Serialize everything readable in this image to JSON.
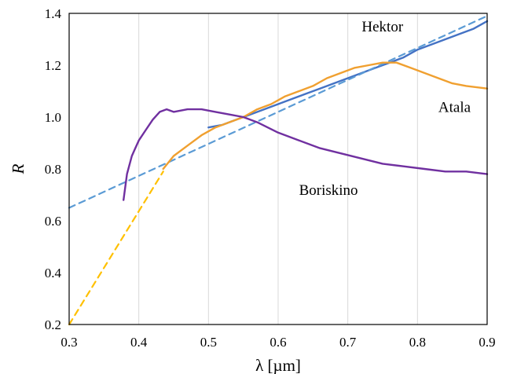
{
  "chart_data": {
    "type": "line",
    "xlabel": "λ [µm]",
    "ylabel": "R",
    "xlim": [
      0.3,
      0.9
    ],
    "ylim": [
      0.2,
      1.4
    ],
    "x_ticks": [
      0.3,
      0.4,
      0.5,
      0.6,
      0.7,
      0.8,
      0.9
    ],
    "x_tick_labels": [
      "0.3",
      "0.4",
      "0.5",
      "0.6",
      "0.7",
      "0.8",
      "0.9"
    ],
    "y_ticks": [
      0.2,
      0.4,
      0.6,
      0.8,
      1.0,
      1.2,
      1.4
    ],
    "y_tick_labels": [
      "0.2",
      "0.4",
      "0.6",
      "0.8",
      "1.0",
      "1.2",
      "1.4"
    ],
    "grid": "vertical",
    "legend": "none",
    "series": [
      {
        "name": "Hektor",
        "color": "#4472c4",
        "style": "solid",
        "label_at": [
          0.72,
          1.33
        ],
        "x": [
          0.5,
          0.52,
          0.54,
          0.56,
          0.58,
          0.6,
          0.62,
          0.64,
          0.66,
          0.68,
          0.7,
          0.72,
          0.74,
          0.76,
          0.78,
          0.8,
          0.82,
          0.84,
          0.86,
          0.88,
          0.9
        ],
        "y": [
          0.96,
          0.97,
          0.99,
          1.01,
          1.03,
          1.05,
          1.07,
          1.09,
          1.11,
          1.13,
          1.15,
          1.17,
          1.19,
          1.21,
          1.23,
          1.26,
          1.28,
          1.3,
          1.32,
          1.34,
          1.37
        ]
      },
      {
        "name": "",
        "color": "#5b9bd5",
        "style": "dashed",
        "x": [
          0.3,
          0.9
        ],
        "y": [
          0.65,
          1.39
        ]
      },
      {
        "name": "Atala",
        "color": "#f0a030",
        "style": "solid",
        "label_at": [
          0.83,
          1.02
        ],
        "x": [
          0.435,
          0.45,
          0.47,
          0.49,
          0.51,
          0.53,
          0.55,
          0.57,
          0.59,
          0.61,
          0.63,
          0.65,
          0.67,
          0.69,
          0.71,
          0.73,
          0.75,
          0.77,
          0.79,
          0.81,
          0.83,
          0.85,
          0.87,
          0.9
        ],
        "y": [
          0.8,
          0.85,
          0.89,
          0.93,
          0.96,
          0.98,
          1.0,
          1.03,
          1.05,
          1.08,
          1.1,
          1.12,
          1.15,
          1.17,
          1.19,
          1.2,
          1.21,
          1.21,
          1.19,
          1.17,
          1.15,
          1.13,
          1.12,
          1.11
        ]
      },
      {
        "name": "",
        "color": "#ffc000",
        "style": "dashed",
        "x": [
          0.3,
          0.435
        ],
        "y": [
          0.2,
          0.79
        ]
      },
      {
        "name": "Boriskino",
        "color": "#7030a0",
        "style": "solid",
        "label_at": [
          0.63,
          0.7
        ],
        "x": [
          0.378,
          0.383,
          0.39,
          0.395,
          0.4,
          0.41,
          0.42,
          0.43,
          0.44,
          0.45,
          0.47,
          0.49,
          0.51,
          0.53,
          0.55,
          0.57,
          0.6,
          0.63,
          0.66,
          0.69,
          0.72,
          0.75,
          0.78,
          0.81,
          0.84,
          0.87,
          0.9
        ],
        "y": [
          0.68,
          0.78,
          0.85,
          0.88,
          0.91,
          0.95,
          0.99,
          1.02,
          1.03,
          1.02,
          1.03,
          1.03,
          1.02,
          1.01,
          1.0,
          0.98,
          0.94,
          0.91,
          0.88,
          0.86,
          0.84,
          0.82,
          0.81,
          0.8,
          0.79,
          0.79,
          0.78
        ]
      }
    ]
  }
}
